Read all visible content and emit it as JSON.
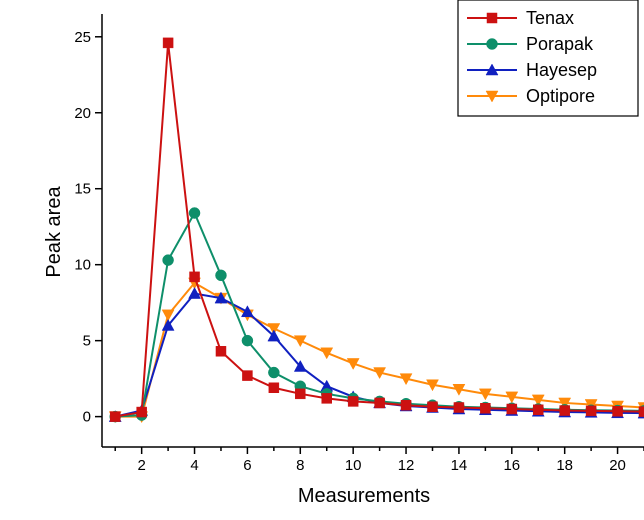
{
  "chart_data": {
    "type": "line",
    "title": "",
    "xlabel": "Measurements",
    "ylabel": "Peak area",
    "xlim": [
      0.5,
      21
    ],
    "ylim": [
      -2,
      26.5
    ],
    "x_ticks": [
      2,
      4,
      6,
      8,
      10,
      12,
      14,
      16,
      18,
      20
    ],
    "y_ticks": [
      0,
      5,
      10,
      15,
      20,
      25
    ],
    "legend_position": "top-right",
    "series": [
      {
        "name": "Tenax",
        "color": "#cc1111",
        "marker": "square",
        "x": [
          1,
          2,
          3,
          4,
          5,
          6,
          7,
          8,
          9,
          10,
          11,
          12,
          13,
          14,
          15,
          16,
          17,
          18,
          19,
          20,
          21
        ],
        "values": [
          0,
          0.3,
          24.6,
          9.2,
          4.3,
          2.7,
          1.9,
          1.5,
          1.2,
          1.0,
          0.9,
          0.75,
          0.65,
          0.6,
          0.55,
          0.5,
          0.45,
          0.4,
          0.38,
          0.35,
          0.33
        ]
      },
      {
        "name": "Porapak",
        "color": "#0e8f6a",
        "marker": "circle",
        "x": [
          1,
          2,
          3,
          4,
          5,
          6,
          7,
          8,
          9,
          10,
          11,
          12,
          13,
          14,
          15,
          16,
          17,
          18,
          19,
          20,
          21
        ],
        "values": [
          0,
          0.1,
          10.3,
          13.4,
          9.3,
          5.0,
          2.9,
          2.0,
          1.5,
          1.2,
          1.0,
          0.85,
          0.75,
          0.65,
          0.6,
          0.55,
          0.5,
          0.45,
          0.42,
          0.4,
          0.38
        ]
      },
      {
        "name": "Hayesep",
        "color": "#1020c0",
        "marker": "triangle-up",
        "x": [
          1,
          2,
          3,
          4,
          5,
          6,
          7,
          8,
          9,
          10,
          11,
          12,
          13,
          14,
          15,
          16,
          17,
          18,
          19,
          20,
          21
        ],
        "values": [
          0,
          0.4,
          6.0,
          8.1,
          7.8,
          6.9,
          5.3,
          3.3,
          2.0,
          1.3,
          0.9,
          0.7,
          0.6,
          0.5,
          0.45,
          0.4,
          0.35,
          0.3,
          0.28,
          0.25,
          0.23
        ]
      },
      {
        "name": "Optipore",
        "color": "#ff8a0a",
        "marker": "triangle-down",
        "x": [
          1,
          2,
          3,
          4,
          5,
          6,
          7,
          8,
          9,
          10,
          11,
          12,
          13,
          14,
          15,
          16,
          17,
          18,
          19,
          20,
          21
        ],
        "values": [
          0,
          0,
          6.7,
          8.8,
          7.8,
          6.7,
          5.8,
          5.0,
          4.2,
          3.5,
          2.9,
          2.5,
          2.1,
          1.8,
          1.5,
          1.3,
          1.1,
          0.9,
          0.8,
          0.7,
          0.6
        ]
      }
    ]
  }
}
